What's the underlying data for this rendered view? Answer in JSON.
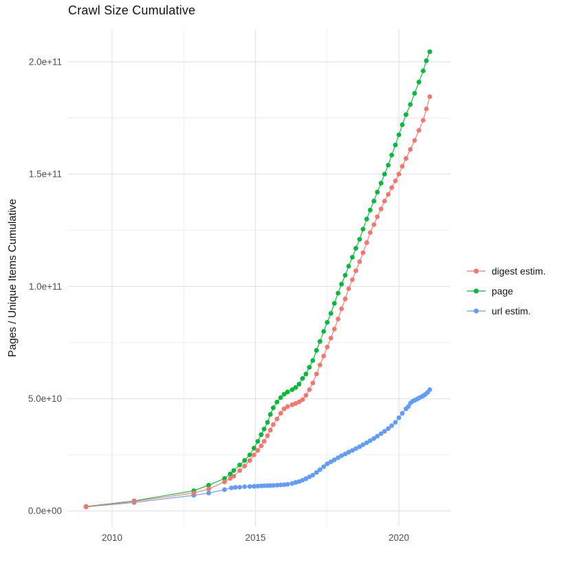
{
  "chart_data": {
    "type": "line",
    "title": "Crawl Size Cumulative",
    "xlabel": "",
    "ylabel": "Pages / Unique Items Cumulative",
    "value_scale": "billions (1e9 items)",
    "grid": true,
    "legend_position": "right",
    "xlim": [
      2008.55,
      2021.75
    ],
    "ylim_e9": [
      -8,
      214
    ],
    "x_axis": {
      "major_ticks": [
        {
          "value": 2010,
          "label": "2010"
        },
        {
          "value": 2015,
          "label": "2015"
        },
        {
          "value": 2020,
          "label": "2020"
        }
      ],
      "minor_ticks": [
        2012.5,
        2017.5
      ]
    },
    "y_axis": {
      "major_ticks": [
        {
          "value_e9": 0,
          "label": "0.0e+00"
        },
        {
          "value_e9": 50,
          "label": "5.0e+10"
        },
        {
          "value_e9": 100,
          "label": "1.0e+11"
        },
        {
          "value_e9": 150,
          "label": "1.5e+11"
        },
        {
          "value_e9": 200,
          "label": "2.0e+11"
        }
      ],
      "minor_ticks_e9": [
        25,
        75,
        125,
        175
      ]
    },
    "draw_order": [
      "page",
      "url estim.",
      "digest estim."
    ],
    "series": [
      {
        "name": "digest estim.",
        "color": "#F8766D",
        "points": [
          [
            2009.09,
            1.9
          ],
          [
            2010.77,
            4.3
          ],
          [
            2012.85,
            8.0
          ],
          [
            2013.37,
            9.8
          ],
          [
            2013.92,
            13.0
          ],
          [
            2014.12,
            14.5
          ],
          [
            2014.24,
            15.5
          ],
          [
            2014.45,
            18.0
          ],
          [
            2014.62,
            20.0
          ],
          [
            2014.8,
            22.5
          ],
          [
            2014.95,
            25.0
          ],
          [
            2015.08,
            27.0
          ],
          [
            2015.2,
            29.0
          ],
          [
            2015.3,
            31.0
          ],
          [
            2015.42,
            33.5
          ],
          [
            2015.52,
            36.0
          ],
          [
            2015.62,
            38.5
          ],
          [
            2015.75,
            41.0
          ],
          [
            2015.88,
            43.5
          ],
          [
            2016.0,
            45.5
          ],
          [
            2016.12,
            46.5
          ],
          [
            2016.28,
            47.3
          ],
          [
            2016.4,
            47.9
          ],
          [
            2016.52,
            48.6
          ],
          [
            2016.64,
            49.6
          ],
          [
            2016.76,
            51.5
          ],
          [
            2016.88,
            54.0
          ],
          [
            2017.0,
            57.0
          ],
          [
            2017.13,
            61.0
          ],
          [
            2017.25,
            65.0
          ],
          [
            2017.38,
            69.0
          ],
          [
            2017.5,
            73.0
          ],
          [
            2017.63,
            77.0
          ],
          [
            2017.75,
            81.0
          ],
          [
            2017.88,
            85.5
          ],
          [
            2018.0,
            90.0
          ],
          [
            2018.13,
            94.5
          ],
          [
            2018.25,
            99.0
          ],
          [
            2018.38,
            103.0
          ],
          [
            2018.5,
            107.0
          ],
          [
            2018.63,
            111.0
          ],
          [
            2018.75,
            115.0
          ],
          [
            2018.88,
            119.5
          ],
          [
            2019.0,
            124.0
          ],
          [
            2019.13,
            127.5
          ],
          [
            2019.25,
            131.0
          ],
          [
            2019.38,
            134.5
          ],
          [
            2019.5,
            138.0
          ],
          [
            2019.63,
            141.0
          ],
          [
            2019.75,
            144.0
          ],
          [
            2019.88,
            147.0
          ],
          [
            2020.0,
            150.0
          ],
          [
            2020.12,
            153.5
          ],
          [
            2020.25,
            157.0
          ],
          [
            2020.4,
            161.0
          ],
          [
            2020.55,
            165.0
          ],
          [
            2020.7,
            169.5
          ],
          [
            2020.85,
            174.0
          ],
          [
            2020.96,
            179.0
          ],
          [
            2021.08,
            184.5
          ]
        ]
      },
      {
        "name": "page",
        "color": "#00BA38",
        "points": [
          [
            2009.09,
            2.0
          ],
          [
            2010.77,
            4.5
          ],
          [
            2012.85,
            9.0
          ],
          [
            2013.37,
            11.5
          ],
          [
            2013.92,
            14.5
          ],
          [
            2014.12,
            16.5
          ],
          [
            2014.24,
            18.0
          ],
          [
            2014.45,
            20.5
          ],
          [
            2014.62,
            22.5
          ],
          [
            2014.8,
            25.0
          ],
          [
            2014.95,
            28.0
          ],
          [
            2015.08,
            31.0
          ],
          [
            2015.2,
            34.0
          ],
          [
            2015.3,
            36.5
          ],
          [
            2015.42,
            39.5
          ],
          [
            2015.52,
            43.0
          ],
          [
            2015.62,
            46.0
          ],
          [
            2015.75,
            48.5
          ],
          [
            2015.88,
            50.5
          ],
          [
            2016.0,
            52.0
          ],
          [
            2016.12,
            53.0
          ],
          [
            2016.28,
            54.0
          ],
          [
            2016.4,
            55.0
          ],
          [
            2016.52,
            56.5
          ],
          [
            2016.64,
            59.0
          ],
          [
            2016.76,
            61.0
          ],
          [
            2016.88,
            64.0
          ],
          [
            2017.0,
            67.0
          ],
          [
            2017.13,
            71.5
          ],
          [
            2017.25,
            75.5
          ],
          [
            2017.38,
            80.0
          ],
          [
            2017.5,
            84.0
          ],
          [
            2017.63,
            88.0
          ],
          [
            2017.75,
            92.5
          ],
          [
            2017.88,
            97.0
          ],
          [
            2018.0,
            101.0
          ],
          [
            2018.13,
            105.0
          ],
          [
            2018.25,
            109.0
          ],
          [
            2018.38,
            113.0
          ],
          [
            2018.5,
            117.0
          ],
          [
            2018.63,
            121.0
          ],
          [
            2018.75,
            125.5
          ],
          [
            2018.88,
            130.0
          ],
          [
            2019.0,
            134.0
          ],
          [
            2019.13,
            138.0
          ],
          [
            2019.25,
            142.0
          ],
          [
            2019.38,
            146.0
          ],
          [
            2019.5,
            150.0
          ],
          [
            2019.63,
            154.0
          ],
          [
            2019.75,
            158.5
          ],
          [
            2019.88,
            163.0
          ],
          [
            2020.0,
            167.5
          ],
          [
            2020.12,
            172.0
          ],
          [
            2020.25,
            176.5
          ],
          [
            2020.4,
            181.0
          ],
          [
            2020.55,
            186.0
          ],
          [
            2020.7,
            191.0
          ],
          [
            2020.85,
            196.0
          ],
          [
            2020.96,
            200.5
          ],
          [
            2021.08,
            204.5
          ]
        ]
      },
      {
        "name": "url estim.",
        "color": "#619CFF",
        "points": [
          [
            2009.09,
            1.8
          ],
          [
            2010.77,
            3.8
          ],
          [
            2012.85,
            7.0
          ],
          [
            2013.37,
            8.0
          ],
          [
            2013.92,
            9.5
          ],
          [
            2014.16,
            10.3
          ],
          [
            2014.3,
            10.5
          ],
          [
            2014.45,
            10.6
          ],
          [
            2014.62,
            10.8
          ],
          [
            2014.8,
            10.9
          ],
          [
            2014.95,
            11.0
          ],
          [
            2015.08,
            11.1
          ],
          [
            2015.2,
            11.2
          ],
          [
            2015.3,
            11.25
          ],
          [
            2015.42,
            11.3
          ],
          [
            2015.52,
            11.35
          ],
          [
            2015.62,
            11.4
          ],
          [
            2015.75,
            11.5
          ],
          [
            2015.88,
            11.6
          ],
          [
            2016.0,
            11.7
          ],
          [
            2016.12,
            11.9
          ],
          [
            2016.28,
            12.3
          ],
          [
            2016.4,
            12.7
          ],
          [
            2016.52,
            13.1
          ],
          [
            2016.64,
            13.7
          ],
          [
            2016.76,
            14.4
          ],
          [
            2016.88,
            15.2
          ],
          [
            2017.0,
            16.0
          ],
          [
            2017.13,
            17.2
          ],
          [
            2017.25,
            18.4
          ],
          [
            2017.38,
            19.7
          ],
          [
            2017.5,
            21.0
          ],
          [
            2017.63,
            21.9
          ],
          [
            2017.75,
            22.8
          ],
          [
            2017.88,
            23.7
          ],
          [
            2018.0,
            24.6
          ],
          [
            2018.13,
            25.4
          ],
          [
            2018.25,
            26.2
          ],
          [
            2018.38,
            27.0
          ],
          [
            2018.5,
            27.8
          ],
          [
            2018.63,
            28.6
          ],
          [
            2018.75,
            29.5
          ],
          [
            2018.88,
            30.4
          ],
          [
            2019.0,
            31.3
          ],
          [
            2019.13,
            32.3
          ],
          [
            2019.25,
            33.3
          ],
          [
            2019.38,
            34.4
          ],
          [
            2019.5,
            35.5
          ],
          [
            2019.63,
            36.7
          ],
          [
            2019.75,
            38.0
          ],
          [
            2019.88,
            39.5
          ],
          [
            2020.0,
            41.5
          ],
          [
            2020.12,
            43.5
          ],
          [
            2020.25,
            45.5
          ],
          [
            2020.33,
            46.5
          ],
          [
            2020.4,
            48.0
          ],
          [
            2020.48,
            48.8
          ],
          [
            2020.55,
            49.3
          ],
          [
            2020.63,
            49.8
          ],
          [
            2020.7,
            50.3
          ],
          [
            2020.78,
            50.8
          ],
          [
            2020.85,
            51.3
          ],
          [
            2020.92,
            51.9
          ],
          [
            2021.0,
            52.8
          ],
          [
            2021.08,
            54.0
          ]
        ]
      }
    ]
  },
  "style": {
    "grid_major_color": "#E3E3E3",
    "grid_minor_color": "#EDEDED",
    "tick_label_color": "#4d4d4d",
    "text_color": "#141414",
    "background": "#ffffff"
  }
}
